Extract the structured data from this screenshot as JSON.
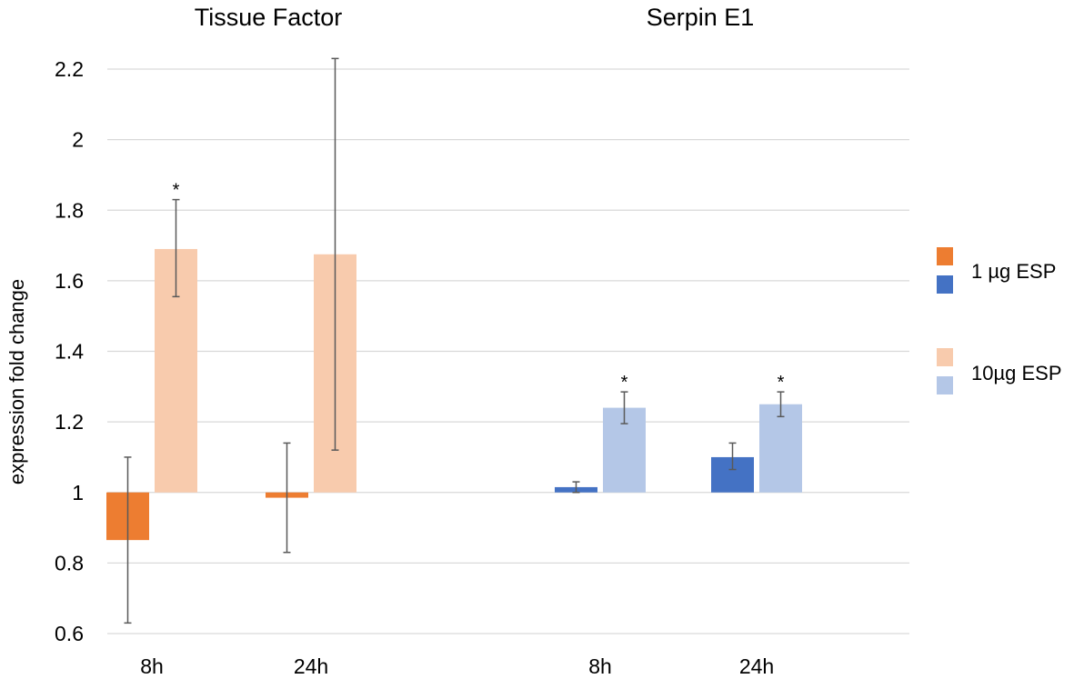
{
  "chart_data": {
    "type": "bar",
    "ylabel": "expression fold change",
    "ylim": [
      0.6,
      2.2
    ],
    "yticks": [
      0.6,
      0.8,
      1,
      1.2,
      1.4,
      1.6,
      1.8,
      2,
      2.2
    ],
    "ytick_labels": [
      "0.6",
      "0.8",
      "1",
      "1.2",
      "1.4",
      "1.6",
      "1.8",
      "2",
      "2.2"
    ],
    "baseline": 1,
    "grid": true,
    "panels": [
      {
        "title": "Tissue Factor",
        "categories": [
          "8h",
          "24h"
        ],
        "series": [
          {
            "name": "1 µg ESP",
            "color": "#ED7D31",
            "values": [
              0.865,
              0.985
            ],
            "err_low": [
              0.63,
              0.83
            ],
            "err_high": [
              1.1,
              1.14
            ],
            "sig": [
              false,
              false
            ]
          },
          {
            "name": "10µg ESP",
            "color": "#F8CBAD",
            "values": [
              1.69,
              1.675
            ],
            "err_low": [
              1.555,
              1.12
            ],
            "err_high": [
              1.83,
              2.23
            ],
            "sig": [
              true,
              false
            ]
          }
        ]
      },
      {
        "title": "Serpin E1",
        "categories": [
          "8h",
          "24h"
        ],
        "series": [
          {
            "name": "1 µg ESP",
            "color": "#4472C4",
            "values": [
              1.015,
              1.1
            ],
            "err_low": [
              1.0,
              1.065
            ],
            "err_high": [
              1.03,
              1.14
            ],
            "sig": [
              false,
              false
            ]
          },
          {
            "name": "10µg ESP",
            "color": "#B4C7E7",
            "values": [
              1.24,
              1.25
            ],
            "err_low": [
              1.195,
              1.215
            ],
            "err_high": [
              1.285,
              1.285
            ],
            "sig": [
              true,
              true
            ]
          }
        ]
      }
    ],
    "legend": {
      "position": "right",
      "entries": [
        {
          "label": "1 µg ESP",
          "colors": [
            "#ED7D31",
            "#4472C4"
          ]
        },
        {
          "label": "10µg ESP",
          "colors": [
            "#F8CBAD",
            "#B4C7E7"
          ]
        }
      ]
    },
    "significance_marker": "*"
  }
}
